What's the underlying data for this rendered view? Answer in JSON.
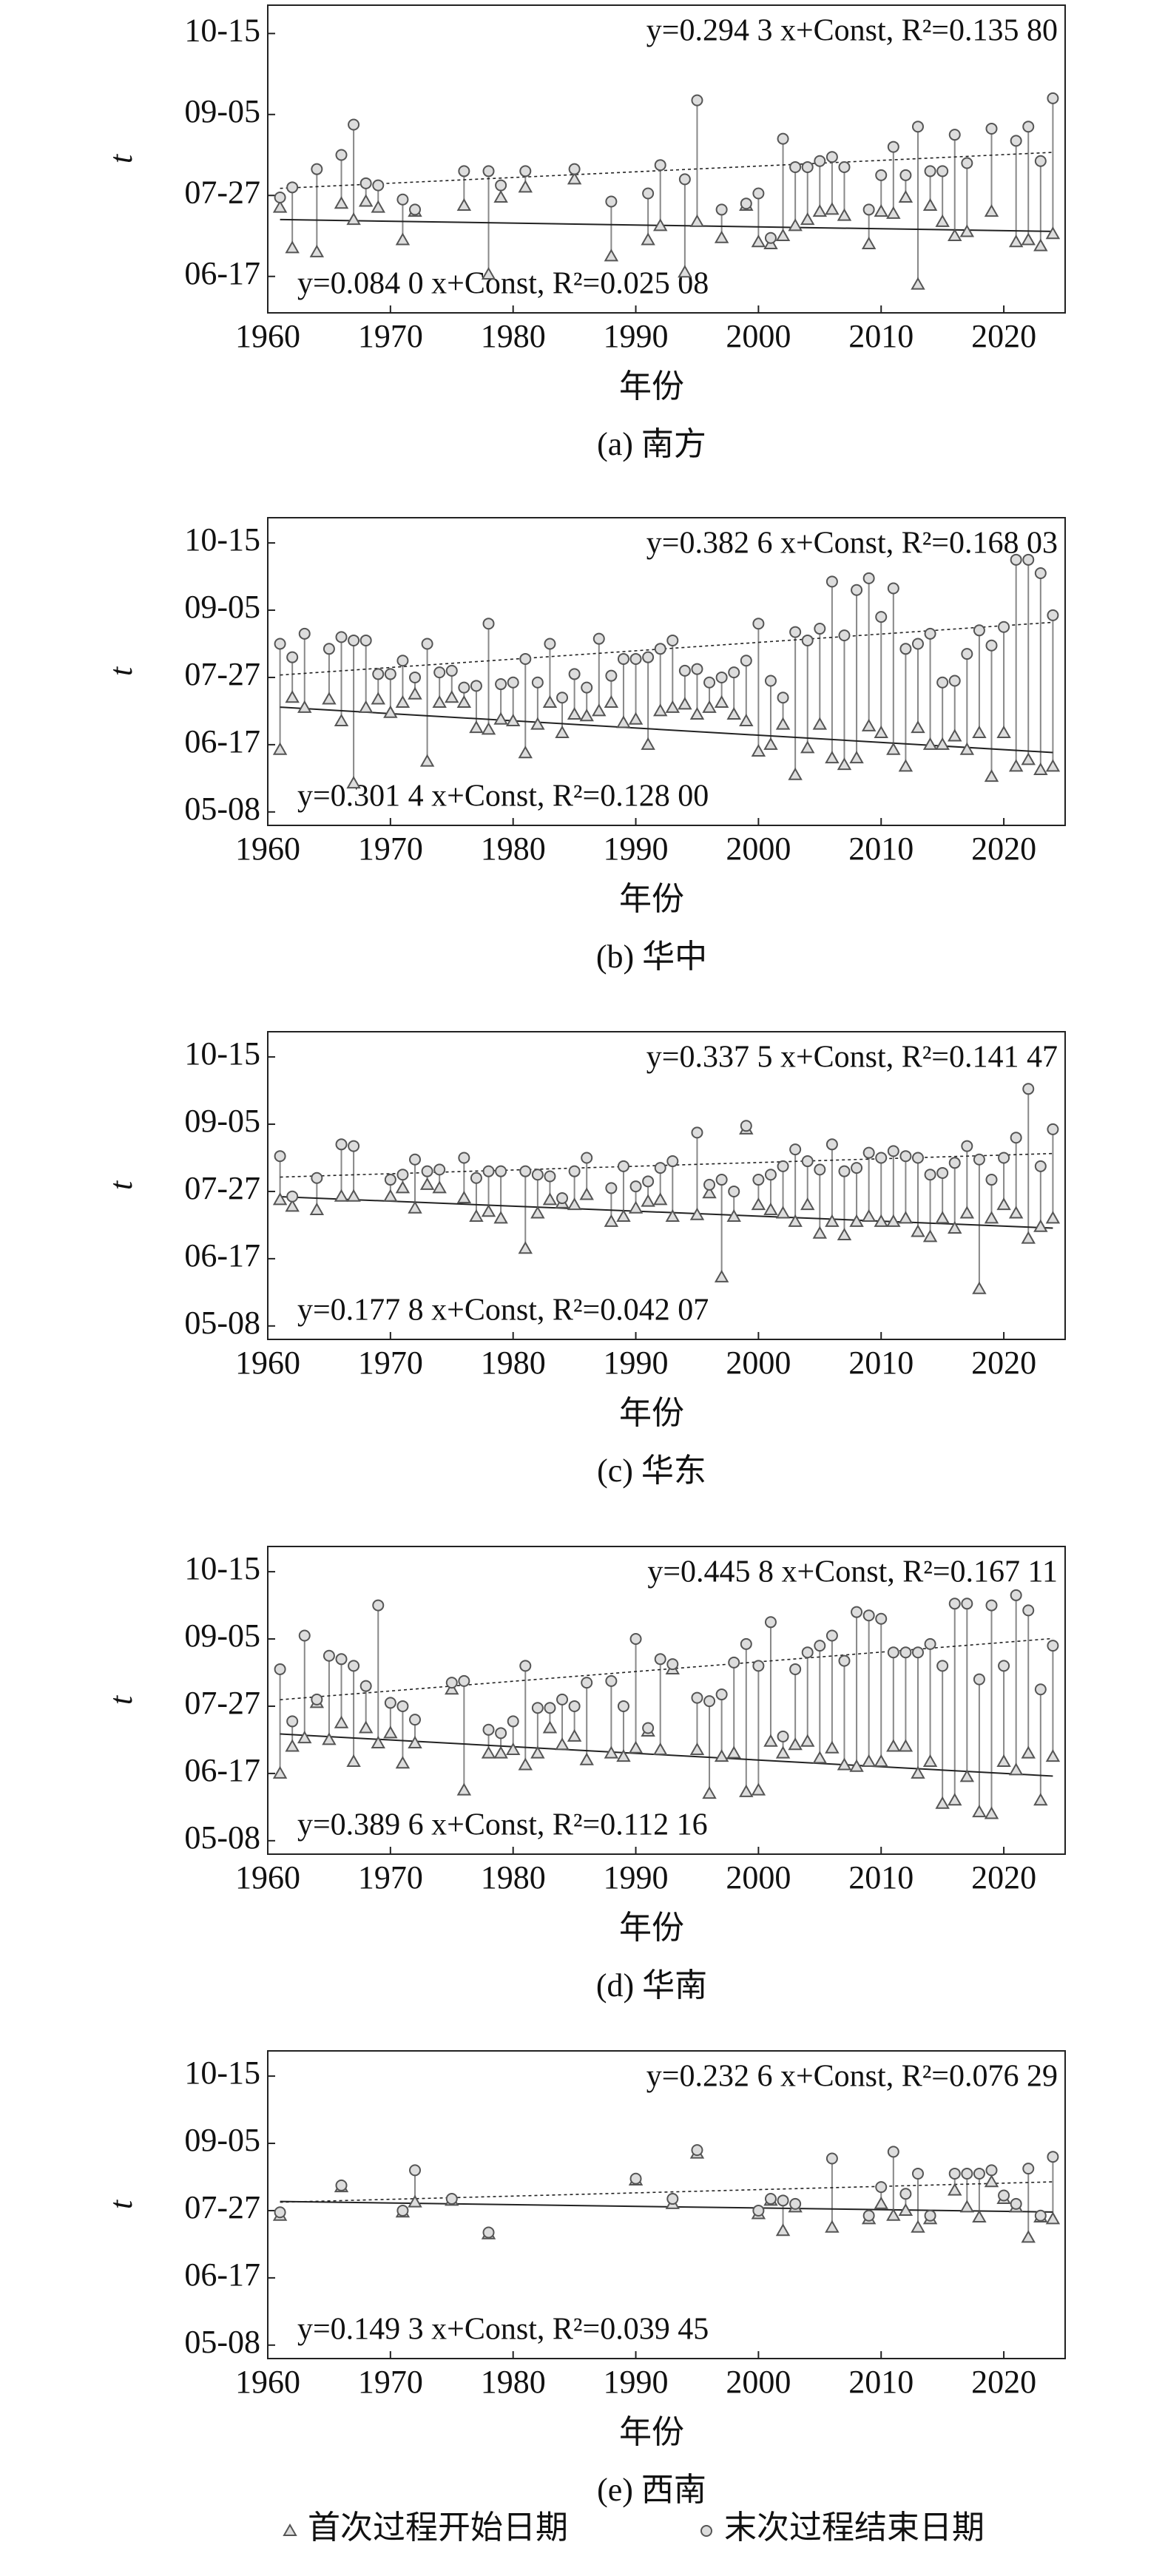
{
  "chart_data": [
    {
      "type": "stem",
      "title": "(a) 南方",
      "xlabel": "年份",
      "ylabel": "t",
      "xlim": [
        1960,
        2025
      ],
      "xticks": [
        1960,
        1970,
        1980,
        1990,
        2000,
        2010,
        2020
      ],
      "ylim": [
        150,
        302
      ],
      "yticks": [
        {
          "value": 168,
          "label": "06-17"
        },
        {
          "value": 208,
          "label": "07-27"
        },
        {
          "value": 248,
          "label": "09-05"
        },
        {
          "value": 288,
          "label": "10-15"
        }
      ],
      "x": [
        1961,
        1962,
        1964,
        1966,
        1967,
        1968,
        1969,
        1971,
        1972,
        1976,
        1978,
        1979,
        1981,
        1985,
        1988,
        1991,
        1992,
        1994,
        1995,
        1997,
        1999,
        2000,
        2001,
        2002,
        2003,
        2004,
        2005,
        2006,
        2007,
        2009,
        2010,
        2011,
        2012,
        2013,
        2014,
        2015,
        2016,
        2017,
        2019,
        2021,
        2022,
        2023,
        2024
      ],
      "series": [
        {
          "marker": "triangle",
          "line": "solid",
          "trend_label": "y=0.084 0 x+Const, R²=0.025 08",
          "values": [
            202,
            182,
            180,
            204,
            196,
            205,
            202,
            186,
            200,
            203,
            169,
            207,
            212,
            216,
            178,
            186,
            193,
            170,
            195,
            187,
            203,
            185,
            184,
            188,
            193,
            196,
            200,
            201,
            198,
            184,
            200,
            199,
            207,
            164,
            203,
            195,
            188,
            190,
            200,
            185,
            186,
            183,
            189
          ]
        },
        {
          "marker": "circle",
          "line": "dashed",
          "trend_label": "y=0.294 3 x+Const, R²=0.135 80",
          "values": [
            207,
            212,
            221,
            228,
            243,
            214,
            213,
            206,
            201,
            220,
            220,
            213,
            220,
            221,
            205,
            209,
            223,
            216,
            255,
            201,
            204,
            209,
            187,
            236,
            222,
            222,
            225,
            227,
            222,
            201,
            218,
            232,
            218,
            242,
            220,
            220,
            238,
            224,
            241,
            235,
            242,
            225,
            256
          ]
        }
      ]
    },
    {
      "type": "stem",
      "title": "(b) 华中",
      "xlabel": "年份",
      "ylabel": "t",
      "xlim": [
        1960,
        2025
      ],
      "xticks": [
        1960,
        1970,
        1980,
        1990,
        2000,
        2010,
        2020
      ],
      "ylim": [
        120,
        303
      ],
      "yticks": [
        {
          "value": 128,
          "label": "05-08"
        },
        {
          "value": 168,
          "label": "06-17"
        },
        {
          "value": 208,
          "label": "07-27"
        },
        {
          "value": 248,
          "label": "09-05"
        },
        {
          "value": 288,
          "label": "10-15"
        }
      ],
      "x": [
        1961,
        1962,
        1963,
        1965,
        1966,
        1967,
        1968,
        1969,
        1970,
        1971,
        1972,
        1973,
        1974,
        1975,
        1976,
        1977,
        1978,
        1979,
        1980,
        1981,
        1982,
        1983,
        1984,
        1985,
        1986,
        1987,
        1988,
        1989,
        1990,
        1991,
        1992,
        1993,
        1994,
        1995,
        1996,
        1997,
        1998,
        1999,
        2000,
        2001,
        2002,
        2003,
        2004,
        2005,
        2006,
        2007,
        2008,
        2009,
        2010,
        2011,
        2012,
        2013,
        2014,
        2015,
        2016,
        2017,
        2018,
        2019,
        2020,
        2021,
        2022,
        2023,
        2024
      ],
      "series": [
        {
          "marker": "triangle",
          "line": "solid",
          "trend_label": "y=0.301 4 x+Const, R²=0.128 00",
          "values": [
            165,
            196,
            190,
            195,
            182,
            145,
            190,
            195,
            187,
            193,
            198,
            158,
            193,
            196,
            193,
            178,
            177,
            183,
            182,
            163,
            180,
            193,
            175,
            186,
            185,
            188,
            193,
            181,
            183,
            168,
            188,
            190,
            192,
            186,
            190,
            193,
            186,
            182,
            164,
            168,
            180,
            150,
            166,
            180,
            160,
            156,
            160,
            179,
            175,
            165,
            155,
            178,
            168,
            168,
            173,
            165,
            175,
            149,
            175,
            155,
            159,
            153,
            155
          ]
        },
        {
          "marker": "circle",
          "line": "dashed",
          "trend_label": "y=0.382 6 x+Const, R²=0.168 03",
          "values": [
            228,
            220,
            234,
            225,
            232,
            230,
            230,
            210,
            210,
            218,
            208,
            228,
            211,
            212,
            202,
            203,
            240,
            204,
            205,
            219,
            205,
            228,
            196,
            210,
            202,
            231,
            209,
            219,
            219,
            220,
            225,
            230,
            212,
            213,
            205,
            208,
            211,
            218,
            240,
            206,
            196,
            235,
            230,
            237,
            265,
            233,
            260,
            267,
            244,
            261,
            225,
            228,
            234,
            205,
            206,
            222,
            236,
            227,
            238,
            278,
            278,
            270,
            245
          ]
        }
      ]
    },
    {
      "type": "stem",
      "title": "(c) 华东",
      "xlabel": "年份",
      "ylabel": "t",
      "xlim": [
        1960,
        2025
      ],
      "xticks": [
        1960,
        1970,
        1980,
        1990,
        2000,
        2010,
        2020
      ],
      "ylim": [
        120,
        303
      ],
      "yticks": [
        {
          "value": 128,
          "label": "05-08"
        },
        {
          "value": 168,
          "label": "06-17"
        },
        {
          "value": 208,
          "label": "07-27"
        },
        {
          "value": 248,
          "label": "09-05"
        },
        {
          "value": 288,
          "label": "10-15"
        }
      ],
      "x": [
        1961,
        1962,
        1964,
        1966,
        1967,
        1970,
        1971,
        1972,
        1973,
        1974,
        1976,
        1977,
        1978,
        1979,
        1981,
        1982,
        1983,
        1984,
        1985,
        1986,
        1988,
        1989,
        1990,
        1991,
        1992,
        1993,
        1995,
        1996,
        1997,
        1998,
        1999,
        2000,
        2001,
        2002,
        2003,
        2004,
        2005,
        2006,
        2007,
        2008,
        2009,
        2010,
        2011,
        2012,
        2013,
        2014,
        2015,
        2016,
        2017,
        2018,
        2019,
        2020,
        2021,
        2022,
        2023,
        2024
      ],
      "series": [
        {
          "marker": "triangle",
          "line": "solid",
          "trend_label": "y=0.177 8 x+Const, R²=0.042 07",
          "values": [
            203,
            199,
            197,
            205,
            205,
            205,
            210,
            198,
            212,
            210,
            204,
            193,
            196,
            192,
            174,
            195,
            203,
            201,
            200,
            206,
            190,
            193,
            198,
            202,
            203,
            193,
            194,
            207,
            157,
            193,
            245,
            200,
            197,
            195,
            190,
            200,
            183,
            190,
            182,
            190,
            193,
            190,
            190,
            192,
            184,
            181,
            192,
            186,
            195,
            150,
            192,
            200,
            195,
            180,
            187,
            192
          ]
        },
        {
          "marker": "circle",
          "line": "dashed",
          "trend_label": "y=0.337 5 x+Const, R²=0.141 47",
          "values": [
            229,
            205,
            216,
            236,
            235,
            215,
            218,
            227,
            220,
            221,
            228,
            216,
            220,
            220,
            220,
            218,
            217,
            204,
            220,
            228,
            210,
            223,
            211,
            214,
            222,
            226,
            243,
            212,
            215,
            208,
            247,
            215,
            218,
            223,
            233,
            226,
            221,
            236,
            220,
            222,
            231,
            228,
            232,
            229,
            228,
            218,
            219,
            225,
            235,
            227,
            215,
            228,
            240,
            269,
            223,
            245
          ]
        }
      ]
    },
    {
      "type": "stem",
      "title": "(d) 华南",
      "xlabel": "年份",
      "ylabel": "t",
      "xlim": [
        1960,
        2025
      ],
      "xticks": [
        1960,
        1970,
        1980,
        1990,
        2000,
        2010,
        2020
      ],
      "ylim": [
        120,
        303
      ],
      "yticks": [
        {
          "value": 128,
          "label": "05-08"
        },
        {
          "value": 168,
          "label": "06-17"
        },
        {
          "value": 208,
          "label": "07-27"
        },
        {
          "value": 248,
          "label": "09-05"
        },
        {
          "value": 288,
          "label": "10-15"
        }
      ],
      "x": [
        1961,
        1962,
        1963,
        1964,
        1965,
        1966,
        1967,
        1968,
        1969,
        1970,
        1971,
        1972,
        1975,
        1976,
        1978,
        1979,
        1980,
        1981,
        1982,
        1983,
        1984,
        1985,
        1986,
        1988,
        1989,
        1990,
        1991,
        1992,
        1993,
        1995,
        1996,
        1997,
        1998,
        1999,
        2000,
        2001,
        2002,
        2003,
        2004,
        2005,
        2006,
        2007,
        2008,
        2009,
        2010,
        2011,
        2012,
        2013,
        2014,
        2015,
        2016,
        2017,
        2018,
        2019,
        2020,
        2021,
        2022,
        2023,
        2024
      ],
      "series": [
        {
          "marker": "triangle",
          "line": "solid",
          "trend_label": "y=0.389 6 x+Const, R²=0.112 16",
          "values": [
            168,
            184,
            189,
            210,
            188,
            198,
            175,
            195,
            186,
            192,
            174,
            186,
            218,
            158,
            180,
            180,
            182,
            173,
            180,
            195,
            185,
            190,
            176,
            180,
            178,
            183,
            193,
            182,
            230,
            182,
            156,
            178,
            180,
            157,
            158,
            187,
            180,
            185,
            187,
            177,
            183,
            173,
            172,
            175,
            175,
            184,
            184,
            168,
            175,
            150,
            152,
            166,
            145,
            144,
            175,
            170,
            180,
            152,
            178
          ]
        },
        {
          "marker": "circle",
          "line": "dashed",
          "trend_label": "y=0.445 8 x+Const, R²=0.167 11",
          "values": [
            230,
            199,
            250,
            212,
            238,
            236,
            232,
            220,
            268,
            210,
            208,
            200,
            222,
            223,
            194,
            192,
            199,
            232,
            207,
            207,
            212,
            208,
            222,
            223,
            208,
            248,
            195,
            236,
            233,
            213,
            211,
            215,
            234,
            245,
            232,
            258,
            190,
            230,
            240,
            244,
            250,
            235,
            264,
            262,
            260,
            240,
            240,
            240,
            245,
            232,
            269,
            269,
            224,
            268,
            232,
            274,
            265,
            218,
            244
          ]
        }
      ]
    },
    {
      "type": "stem",
      "title": "(e) 西南",
      "xlabel": "年份",
      "ylabel": "t",
      "xlim": [
        1960,
        2025
      ],
      "xticks": [
        1960,
        1970,
        1980,
        1990,
        2000,
        2010,
        2020
      ],
      "ylim": [
        120,
        303
      ],
      "yticks": [
        {
          "value": 128,
          "label": "05-08"
        },
        {
          "value": 168,
          "label": "06-17"
        },
        {
          "value": 208,
          "label": "07-27"
        },
        {
          "value": 248,
          "label": "09-05"
        },
        {
          "value": 288,
          "label": "10-15"
        }
      ],
      "x": [
        1961,
        1966,
        1971,
        1972,
        1975,
        1978,
        1990,
        1993,
        1995,
        2000,
        2001,
        2002,
        2003,
        2006,
        2009,
        2010,
        2011,
        2012,
        2013,
        2014,
        2016,
        2017,
        2018,
        2019,
        2020,
        2021,
        2022,
        2023,
        2024
      ],
      "series": [
        {
          "marker": "triangle",
          "line": "solid",
          "trend_label": "y=0.149 3 x+Const, R²=0.039 45",
          "values": [
            205,
            222,
            207,
            213,
            214,
            194,
            226,
            212,
            242,
            206,
            214,
            196,
            210,
            198,
            203,
            212,
            205,
            208,
            198,
            203,
            220,
            210,
            204,
            225,
            215,
            210,
            192,
            204,
            203
          ]
        },
        {
          "marker": "circle",
          "line": "dashed",
          "trend_label": "y=0.232 6 x+Const, R²=0.076 29",
          "values": [
            207,
            223,
            208,
            232,
            215,
            195,
            227,
            215,
            244,
            208,
            215,
            214,
            212,
            239,
            205,
            222,
            243,
            218,
            230,
            205,
            230,
            230,
            230,
            232,
            217,
            212,
            233,
            205,
            240
          ]
        }
      ]
    }
  ],
  "legend": [
    {
      "name": "首次过程开始日期",
      "marker": "triangle"
    },
    {
      "name": "末次过程结束日期",
      "marker": "circle"
    }
  ]
}
